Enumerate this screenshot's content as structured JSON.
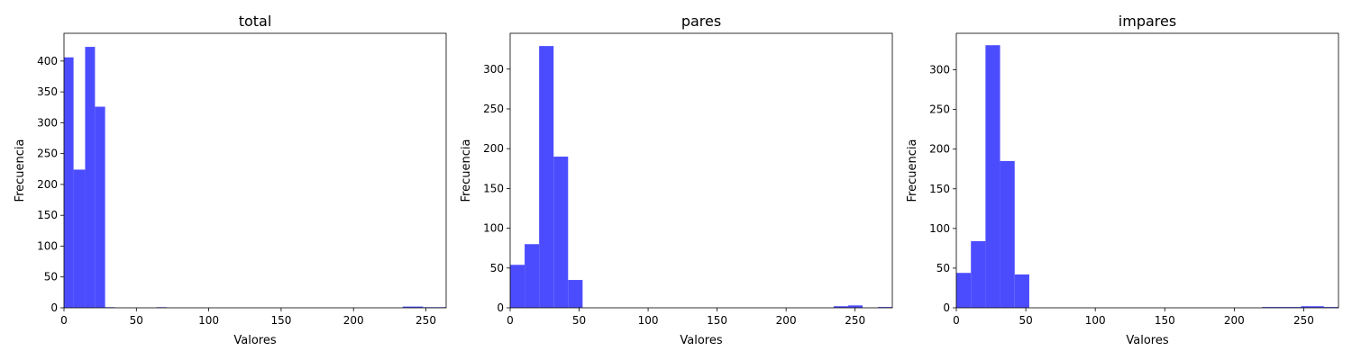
{
  "chart_data": [
    {
      "type": "bar",
      "title": "total",
      "xlabel": "Valores",
      "ylabel": "Frecuencia",
      "xlim": [
        0,
        264
      ],
      "ylim": [
        0,
        445
      ],
      "xticks": [
        0,
        50,
        100,
        150,
        200,
        250
      ],
      "yticks": [
        0,
        50,
        100,
        150,
        200,
        250,
        300,
        350,
        400
      ],
      "grid": false,
      "bar_color": "#4c4cff",
      "bins": [
        {
          "x0": 0,
          "x1": 6.6,
          "count": 406
        },
        {
          "x0": 6.6,
          "x1": 14.6,
          "count": 224
        },
        {
          "x0": 14.6,
          "x1": 21.4,
          "count": 423
        },
        {
          "x0": 21.4,
          "x1": 28.4,
          "count": 326
        },
        {
          "x0": 28.4,
          "x1": 35.0,
          "count": 1
        },
        {
          "x0": 64.0,
          "x1": 71.0,
          "count": 1
        },
        {
          "x0": 234.0,
          "x1": 248.0,
          "count": 2
        },
        {
          "x0": 248.0,
          "x1": 264.0,
          "count": 1
        }
      ]
    },
    {
      "type": "bar",
      "title": "pares",
      "xlabel": "Valores",
      "ylabel": "Frecuencia",
      "xlim": [
        0,
        277
      ],
      "ylim": [
        0,
        345
      ],
      "xticks": [
        0,
        50,
        100,
        150,
        200,
        250
      ],
      "yticks": [
        0,
        50,
        100,
        150,
        200,
        250,
        300
      ],
      "grid": false,
      "bar_color": "#4c4cff",
      "bins": [
        {
          "x0": 0,
          "x1": 10.5,
          "count": 54
        },
        {
          "x0": 10.5,
          "x1": 21.0,
          "count": 80
        },
        {
          "x0": 21.0,
          "x1": 31.5,
          "count": 329
        },
        {
          "x0": 31.5,
          "x1": 42.0,
          "count": 190
        },
        {
          "x0": 42.0,
          "x1": 52.5,
          "count": 35
        },
        {
          "x0": 234.5,
          "x1": 245.0,
          "count": 2
        },
        {
          "x0": 245.0,
          "x1": 255.5,
          "count": 3
        },
        {
          "x0": 266.5,
          "x1": 277.0,
          "count": 1
        }
      ]
    },
    {
      "type": "bar",
      "title": "impares",
      "xlabel": "Valores",
      "ylabel": "Frecuencia",
      "xlim": [
        0,
        275
      ],
      "ylim": [
        0,
        346
      ],
      "xticks": [
        0,
        50,
        100,
        150,
        200,
        250
      ],
      "yticks": [
        0,
        50,
        100,
        150,
        200,
        250,
        300
      ],
      "grid": false,
      "bar_color": "#4c4cff",
      "bins": [
        {
          "x0": 0,
          "x1": 10.5,
          "count": 44
        },
        {
          "x0": 10.5,
          "x1": 21.0,
          "count": 84
        },
        {
          "x0": 21.0,
          "x1": 31.5,
          "count": 331
        },
        {
          "x0": 31.5,
          "x1": 42.0,
          "count": 185
        },
        {
          "x0": 42.0,
          "x1": 52.5,
          "count": 42
        },
        {
          "x0": 220.0,
          "x1": 248.0,
          "count": 1
        },
        {
          "x0": 248.0,
          "x1": 264.5,
          "count": 2
        },
        {
          "x0": 264.5,
          "x1": 275.0,
          "count": 1
        }
      ]
    }
  ]
}
